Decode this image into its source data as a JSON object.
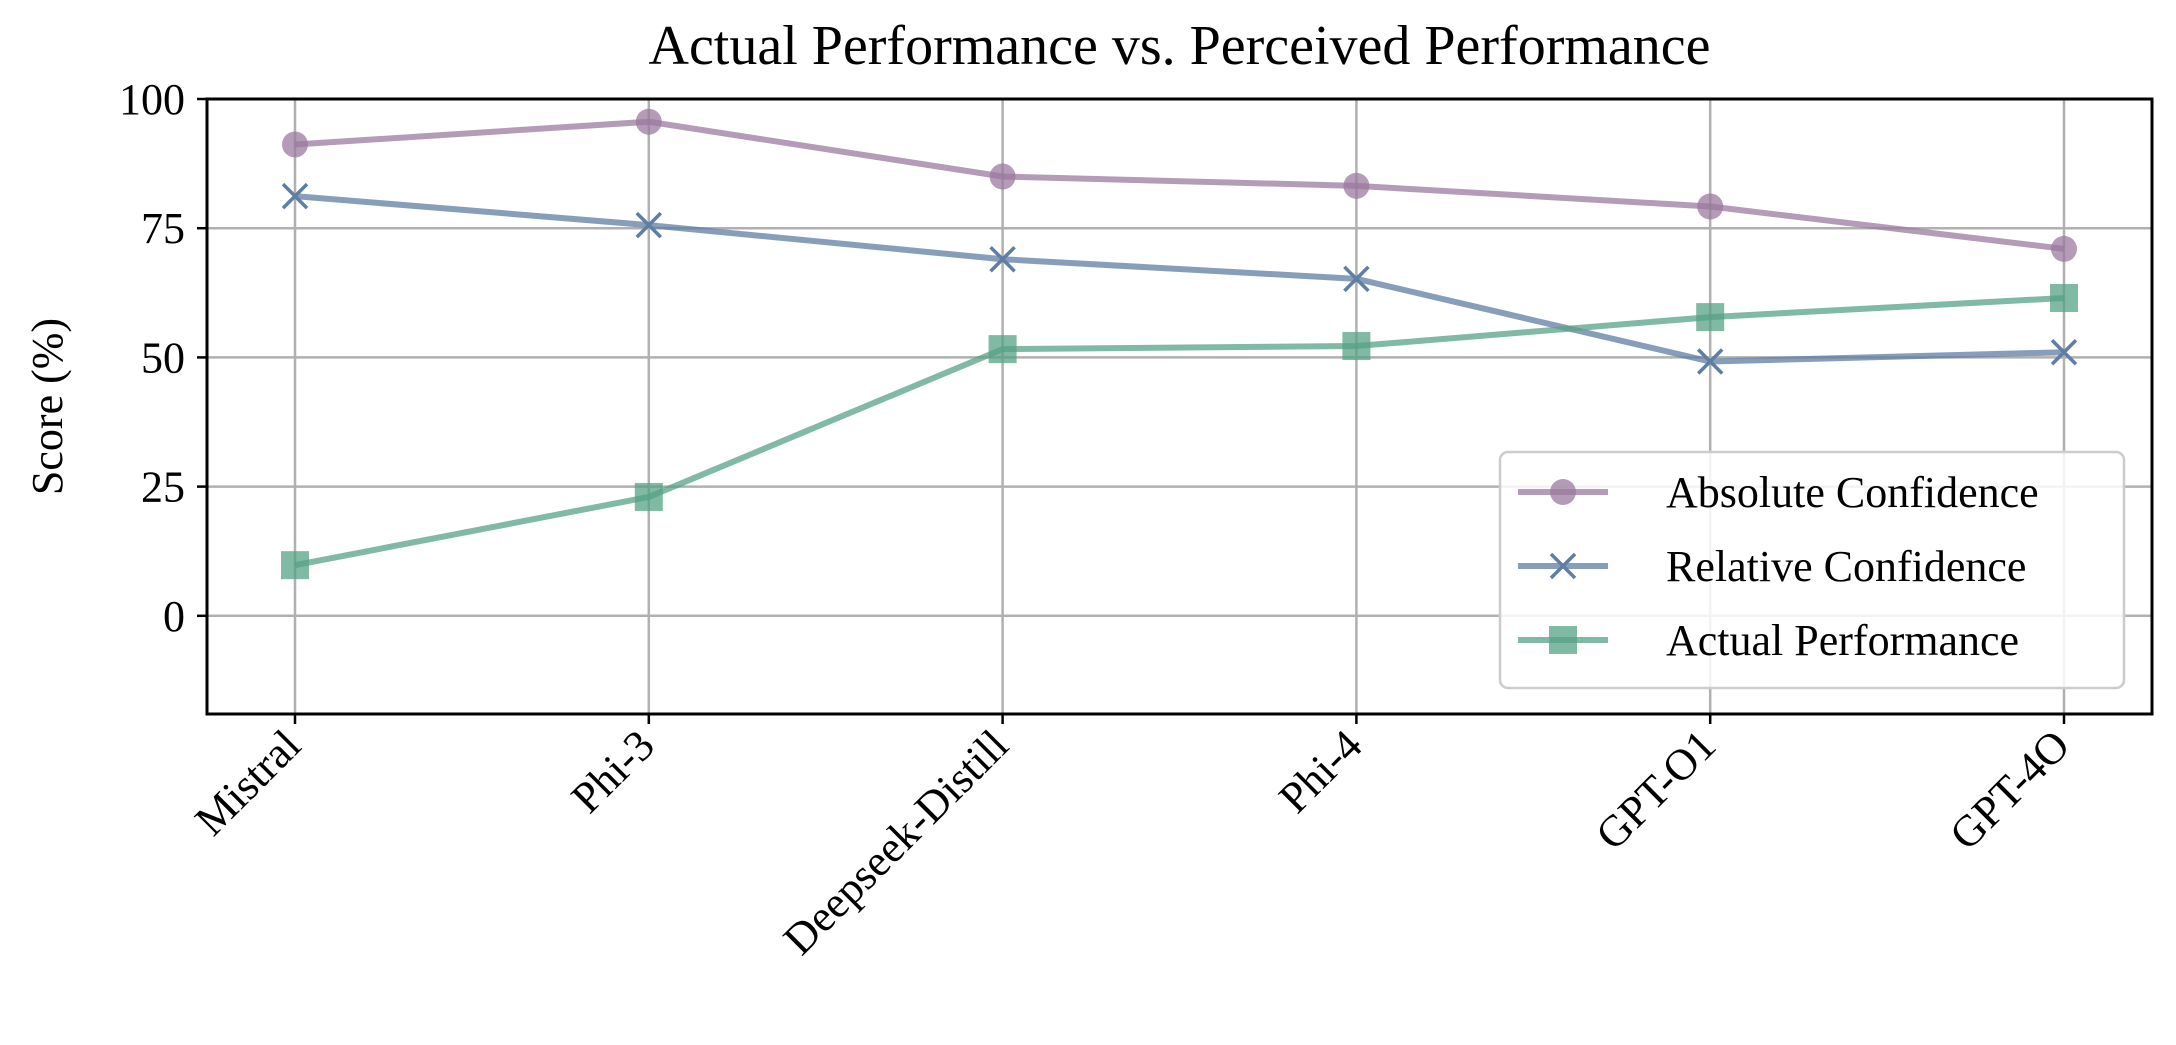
{
  "chart_data": {
    "type": "line",
    "title": "Actual Performance vs. Perceived Performance",
    "xlabel": "",
    "ylabel": "Score (%)",
    "categories": [
      "Mistral",
      "Phi-3",
      "Deepseek-Distill",
      "Phi-4",
      "GPT-O1",
      "GPT-4O"
    ],
    "ylim": [
      -19,
      100
    ],
    "yticks": [
      0,
      25,
      50,
      75,
      100
    ],
    "grid": true,
    "legend_position": "lower-right",
    "series": [
      {
        "name": "Absolute Confidence",
        "marker": "circle",
        "color": "#9b7a9f",
        "values": [
          91.2,
          95.6,
          85.0,
          83.2,
          79.2,
          71.0
        ]
      },
      {
        "name": "Relative Confidence",
        "marker": "x",
        "color": "#5f7ea3",
        "values": [
          81.2,
          75.6,
          69.0,
          65.2,
          49.2,
          51.0
        ]
      },
      {
        "name": "Actual Performance",
        "marker": "square",
        "color": "#55a285",
        "values": [
          9.8,
          23.0,
          51.6,
          52.2,
          57.8,
          61.5
        ]
      }
    ]
  }
}
